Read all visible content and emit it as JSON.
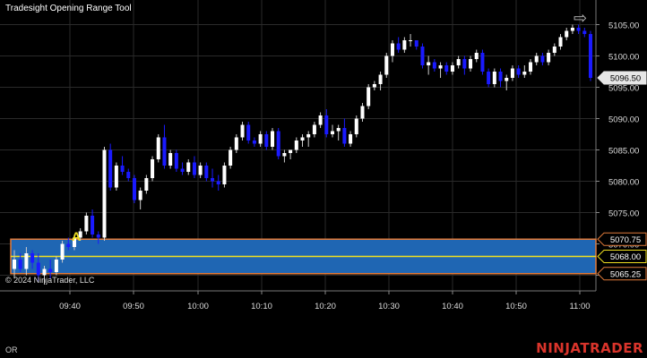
{
  "title": "Tradesight Opening Range Tool",
  "copyright": "© 2024 NinjaTrader, LLC",
  "footer_left": "OR",
  "brand": "NINJATRADER",
  "marker_label": "A",
  "colors": {
    "background": "#000000",
    "grid": "#2a2a2a",
    "up_candle": "#ffffff",
    "down_candle": "#1a1aff",
    "range_fill": "#1f66b3",
    "range_border": "#e07a3a",
    "midline": "#f0e020",
    "brand": "#d9342b"
  },
  "chart_data": {
    "type": "candlestick",
    "y_axis_labels": [
      "5105.00",
      "5100.00",
      "5095.00",
      "5090.00",
      "5085.00",
      "5080.00",
      "5075.00",
      "5070.00",
      "5065.00"
    ],
    "x_axis_labels": [
      "09:40",
      "09:50",
      "10:00",
      "10:10",
      "10:20",
      "10:30",
      "10:40",
      "10:50",
      "11:00"
    ],
    "ylim": [
      5062.5,
      5107.5
    ],
    "opening_range": {
      "high": 5070.75,
      "mid": 5068.0,
      "low": 5065.25,
      "high_label": "5070.75",
      "mid_label": "5068.00",
      "low_label": "5065.25"
    },
    "last_price": 5096.5,
    "last_price_label": "5096.50",
    "candles": [
      [
        5066,
        5069,
        5064.5,
        5067.5
      ],
      [
        5067.5,
        5068.5,
        5065.5,
        5066
      ],
      [
        5066,
        5069.5,
        5065,
        5068.5
      ],
      [
        5068.5,
        5069,
        5066,
        5067
      ],
      [
        5067,
        5068.5,
        5064,
        5065
      ],
      [
        5065,
        5066.5,
        5063.5,
        5066
      ],
      [
        5066,
        5067.5,
        5064.5,
        5065.5
      ],
      [
        5065.5,
        5068,
        5065,
        5067.5
      ],
      [
        5067.5,
        5070.5,
        5067,
        5070
      ],
      [
        5070,
        5071,
        5069,
        5069.5
      ],
      [
        5069.5,
        5071.5,
        5069,
        5071
      ],
      [
        5071,
        5072.5,
        5070.5,
        5072
      ],
      [
        5072,
        5075,
        5071.5,
        5074.5
      ],
      [
        5074.5,
        5075.5,
        5071,
        5071.5
      ],
      [
        5071.5,
        5072,
        5070,
        5071
      ],
      [
        5071,
        5085.5,
        5070.5,
        5085
      ],
      [
        5085,
        5086,
        5078.5,
        5079
      ],
      [
        5079,
        5083,
        5078.5,
        5082.5
      ],
      [
        5082.5,
        5084,
        5081,
        5081.5
      ],
      [
        5081.5,
        5082,
        5080,
        5080.5
      ],
      [
        5080.5,
        5081,
        5076.5,
        5077
      ],
      [
        5077,
        5079,
        5075.5,
        5078.5
      ],
      [
        5078.5,
        5081,
        5078,
        5080.5
      ],
      [
        5080.5,
        5084,
        5080,
        5083.5
      ],
      [
        5083.5,
        5087.5,
        5083,
        5087
      ],
      [
        5087,
        5089,
        5082,
        5082.5
      ],
      [
        5082.5,
        5085,
        5082,
        5084.5
      ],
      [
        5084.5,
        5085,
        5081.5,
        5082
      ],
      [
        5082,
        5083,
        5081,
        5081.5
      ],
      [
        5081.5,
        5083.5,
        5081,
        5083
      ],
      [
        5083,
        5084,
        5080.5,
        5081
      ],
      [
        5081,
        5083,
        5080.5,
        5082.5
      ],
      [
        5082.5,
        5083,
        5080,
        5080.5
      ],
      [
        5080.5,
        5082,
        5079,
        5080
      ],
      [
        5080,
        5081,
        5078.5,
        5079.5
      ],
      [
        5079.5,
        5083,
        5079,
        5082.5
      ],
      [
        5082.5,
        5085.5,
        5082,
        5085
      ],
      [
        5085,
        5087.5,
        5084.5,
        5087
      ],
      [
        5087,
        5089.5,
        5086.5,
        5089
      ],
      [
        5089,
        5089.5,
        5086,
        5086.5
      ],
      [
        5086.5,
        5087,
        5085.5,
        5086
      ],
      [
        5086,
        5088,
        5085.5,
        5087.5
      ],
      [
        5087.5,
        5088,
        5085,
        5085.5
      ],
      [
        5085.5,
        5088.5,
        5085,
        5088
      ],
      [
        5088,
        5088.5,
        5083.5,
        5084
      ],
      [
        5084,
        5085,
        5083,
        5084.5
      ],
      [
        5084.5,
        5085,
        5083.5,
        5085
      ],
      [
        5085,
        5087,
        5084.5,
        5086.5
      ],
      [
        5086.5,
        5087.5,
        5085.5,
        5087
      ],
      [
        5087,
        5088,
        5085.5,
        5087.5
      ],
      [
        5087.5,
        5089.5,
        5087,
        5089
      ],
      [
        5089,
        5091,
        5088.5,
        5090.5
      ],
      [
        5090.5,
        5091.5,
        5087,
        5087.5
      ],
      [
        5087.5,
        5089,
        5087,
        5088
      ],
      [
        5088,
        5089,
        5086.5,
        5088.5
      ],
      [
        5088.5,
        5090,
        5085.5,
        5086
      ],
      [
        5086,
        5088,
        5085.5,
        5087.5
      ],
      [
        5087.5,
        5090.5,
        5087,
        5090
      ],
      [
        5090,
        5092.5,
        5089.5,
        5092
      ],
      [
        5092,
        5095.5,
        5091.5,
        5095
      ],
      [
        5095,
        5096,
        5094.5,
        5095.5
      ],
      [
        5095.5,
        5097.5,
        5094.5,
        5097
      ],
      [
        5097,
        5100.5,
        5096.5,
        5100
      ],
      [
        5100,
        5102.5,
        5099,
        5102
      ],
      [
        5102,
        5103,
        5100.5,
        5101
      ],
      [
        5101,
        5103,
        5100.5,
        5102.5
      ],
      [
        5102.5,
        5103.5,
        5101.5,
        5102.5
      ],
      [
        5102.5,
        5102.5,
        5101,
        5101.5
      ],
      [
        5101.5,
        5102,
        5098,
        5098.5
      ],
      [
        5098.5,
        5100,
        5097,
        5099
      ],
      [
        5099,
        5099.5,
        5097.5,
        5098
      ],
      [
        5098,
        5099,
        5096.5,
        5098.5
      ],
      [
        5098.5,
        5099,
        5097,
        5097.5
      ],
      [
        5097.5,
        5099,
        5097,
        5098.5
      ],
      [
        5098.5,
        5100,
        5098,
        5099.5
      ],
      [
        5099.5,
        5100,
        5097,
        5098
      ],
      [
        5098,
        5100,
        5097.5,
        5099.5
      ],
      [
        5099.5,
        5101,
        5099,
        5100.5
      ],
      [
        5100.5,
        5101,
        5097,
        5097.5
      ],
      [
        5097.5,
        5098,
        5095,
        5095.5
      ],
      [
        5095.5,
        5098,
        5095,
        5097.5
      ],
      [
        5097.5,
        5098,
        5095,
        5096
      ],
      [
        5096,
        5097,
        5094.5,
        5096.5
      ],
      [
        5096.5,
        5098.5,
        5096,
        5098
      ],
      [
        5098,
        5098.5,
        5096.5,
        5097
      ],
      [
        5097,
        5098.5,
        5096.5,
        5097.5
      ],
      [
        5097.5,
        5099.5,
        5097,
        5099
      ],
      [
        5099,
        5100.5,
        5098.5,
        5100
      ],
      [
        5100,
        5100.5,
        5098.5,
        5099
      ],
      [
        5099,
        5101,
        5098.5,
        5100.5
      ],
      [
        5100.5,
        5102,
        5100,
        5101.5
      ],
      [
        5101.5,
        5103.5,
        5101,
        5103
      ],
      [
        5103,
        5104.5,
        5102.5,
        5104
      ],
      [
        5104,
        5105,
        5103.5,
        5104.5
      ],
      [
        5104.5,
        5105,
        5103.5,
        5104
      ],
      [
        5104,
        5104.5,
        5103,
        5103.5
      ],
      [
        5103.5,
        5104,
        5096,
        5096.5
      ]
    ]
  }
}
